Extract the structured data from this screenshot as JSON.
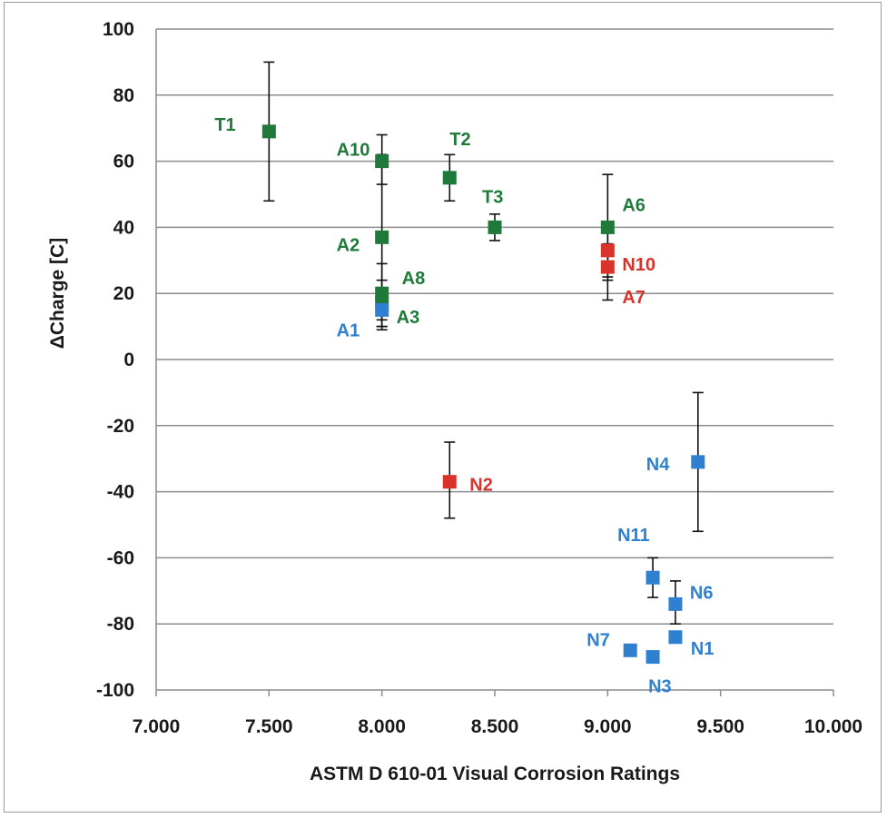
{
  "chart_data": {
    "type": "scatter",
    "title": "",
    "xlabel": "ASTM D 610-01 Visual Corrosion Ratings",
    "ylabel": "ΔCharge [C]",
    "xlim": [
      7.0,
      10.0
    ],
    "ylim": [
      -100,
      100
    ],
    "x_ticks": [
      "7.000",
      "7.500",
      "8.000",
      "8.500",
      "9.000",
      "9.500",
      "10.000"
    ],
    "y_ticks": [
      "100",
      "80",
      "60",
      "40",
      "20",
      "0",
      "-20",
      "-40",
      "-60",
      "-80",
      "-100"
    ],
    "grid": "horizontal",
    "legend": "none",
    "colors": {
      "green": "#1f7a3a",
      "red": "#d9342b",
      "blue": "#2f80d0"
    },
    "points": [
      {
        "label": "T1",
        "x": 7.5,
        "y": 69,
        "err_low": 48,
        "err_high": 90,
        "color": "green"
      },
      {
        "label": "A10",
        "x": 8.0,
        "y": 60,
        "err_low": 53,
        "err_high": 68,
        "color": "green"
      },
      {
        "label": "A2",
        "x": 8.0,
        "y": 37,
        "err_low": 12,
        "err_high": 62,
        "color": "green"
      },
      {
        "label": "A8",
        "x": 8.0,
        "y": 20,
        "err_low": 10,
        "err_high": 29,
        "color": "green"
      },
      {
        "label": "A3",
        "x": 8.0,
        "y": 17,
        "err_low": 9,
        "err_high": 24,
        "color": "green"
      },
      {
        "label": "A1",
        "x": 8.0,
        "y": 15,
        "err_low": 10,
        "err_high": 20,
        "color": "blue"
      },
      {
        "label": "T2",
        "x": 8.3,
        "y": 55,
        "err_low": 48,
        "err_high": 62,
        "color": "green"
      },
      {
        "label": "T3",
        "x": 8.5,
        "y": 40,
        "err_low": 36,
        "err_high": 44,
        "color": "green"
      },
      {
        "label": "A6",
        "x": 9.0,
        "y": 40,
        "err_low": 25,
        "err_high": 56,
        "color": "green"
      },
      {
        "label": "N10",
        "x": 9.0,
        "y": 33,
        "err_low": 24,
        "err_high": 40,
        "color": "red"
      },
      {
        "label": "A7",
        "x": 9.0,
        "y": 28,
        "err_low": 18,
        "err_high": 35,
        "color": "red"
      },
      {
        "label": "N2",
        "x": 8.3,
        "y": -37,
        "err_low": -48,
        "err_high": -25,
        "color": "red"
      },
      {
        "label": "N4",
        "x": 9.4,
        "y": -31,
        "err_low": -52,
        "err_high": -10,
        "color": "blue"
      },
      {
        "label": "N11",
        "x": 9.2,
        "y": -66,
        "err_low": -72,
        "err_high": -60,
        "color": "blue"
      },
      {
        "label": "N6",
        "x": 9.3,
        "y": -74,
        "err_low": -80,
        "err_high": -67,
        "color": "blue"
      },
      {
        "label": "N1",
        "x": 9.3,
        "y": -84,
        "err_low": null,
        "err_high": null,
        "color": "blue"
      },
      {
        "label": "N7",
        "x": 9.1,
        "y": -88,
        "err_low": null,
        "err_high": null,
        "color": "blue"
      },
      {
        "label": "N3",
        "x": 9.2,
        "y": -90,
        "err_low": -91,
        "err_high": -89,
        "color": "blue"
      }
    ]
  }
}
